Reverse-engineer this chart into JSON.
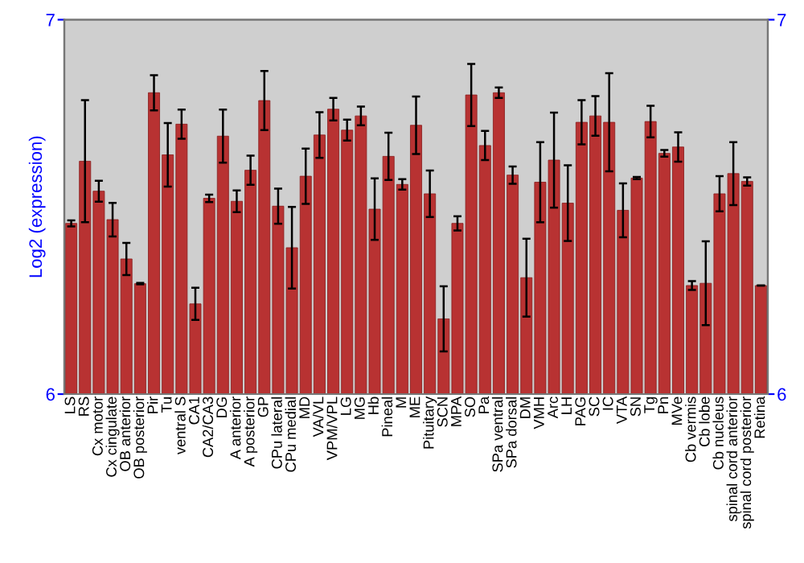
{
  "chart_data": {
    "type": "bar",
    "ylabel": "Log2 (expression)",
    "categories": [
      "LS",
      "RS",
      "Cx motor",
      "Cx cingulate",
      "OB anterior",
      "OB posterior",
      "Pir",
      "Tu",
      "ventral S",
      "CA1",
      "CA2/CA3",
      "DG",
      "A anterior",
      "A posterior",
      "GP",
      "CPu lateral",
      "CPu medial",
      "MD",
      "VA/VL",
      "VPM/VPL",
      "LG",
      "MG",
      "Hb",
      "Pineal",
      "M",
      "ME",
      "Pituitary",
      "SCN",
      "MPA",
      "SO",
      "Pa",
      "SPa ventral",
      "SPa dorsal",
      "DM",
      "VMH",
      "Arc",
      "LH",
      "PAG",
      "SC",
      "IC",
      "VTA",
      "SN",
      "Tg",
      "Pn",
      "MVe",
      "Cb vermis",
      "Cb lobe",
      "Cb nucleus",
      "spinal cord anterior",
      "spinal cord posterior",
      "Retina"
    ],
    "values": [
      6.456,
      6.622,
      6.542,
      6.466,
      6.361,
      6.295,
      6.805,
      6.639,
      6.721,
      6.241,
      6.523,
      6.689,
      6.515,
      6.598,
      6.784,
      6.502,
      6.391,
      6.582,
      6.692,
      6.761,
      6.705,
      6.743,
      6.494,
      6.635,
      6.56,
      6.718,
      6.535,
      6.201,
      6.456,
      6.799,
      6.664,
      6.805,
      6.585,
      6.311,
      6.566,
      6.625,
      6.51,
      6.726,
      6.743,
      6.726,
      6.491,
      6.577,
      6.728,
      6.643,
      6.66,
      6.29,
      6.296,
      6.535,
      6.589,
      6.568,
      6.29
    ],
    "errors": [
      0.008,
      0.163,
      0.028,
      0.045,
      0.043,
      0.002,
      0.047,
      0.085,
      0.039,
      0.043,
      0.01,
      0.071,
      0.029,
      0.039,
      0.079,
      0.047,
      0.109,
      0.074,
      0.061,
      0.03,
      0.028,
      0.025,
      0.082,
      0.063,
      0.014,
      0.077,
      0.062,
      0.087,
      0.019,
      0.083,
      0.039,
      0.014,
      0.023,
      0.104,
      0.107,
      0.127,
      0.101,
      0.059,
      0.053,
      0.131,
      0.072,
      0.003,
      0.042,
      0.009,
      0.039,
      0.012,
      0.112,
      0.047,
      0.084,
      0.011,
      null
    ],
    "color": "#b83232",
    "ylim": [
      6,
      7
    ],
    "yticks": [
      6,
      7
    ],
    "y2lim": [
      6,
      7
    ],
    "y2ticks": [
      6,
      7
    ],
    "grid": false,
    "legend": false
  }
}
